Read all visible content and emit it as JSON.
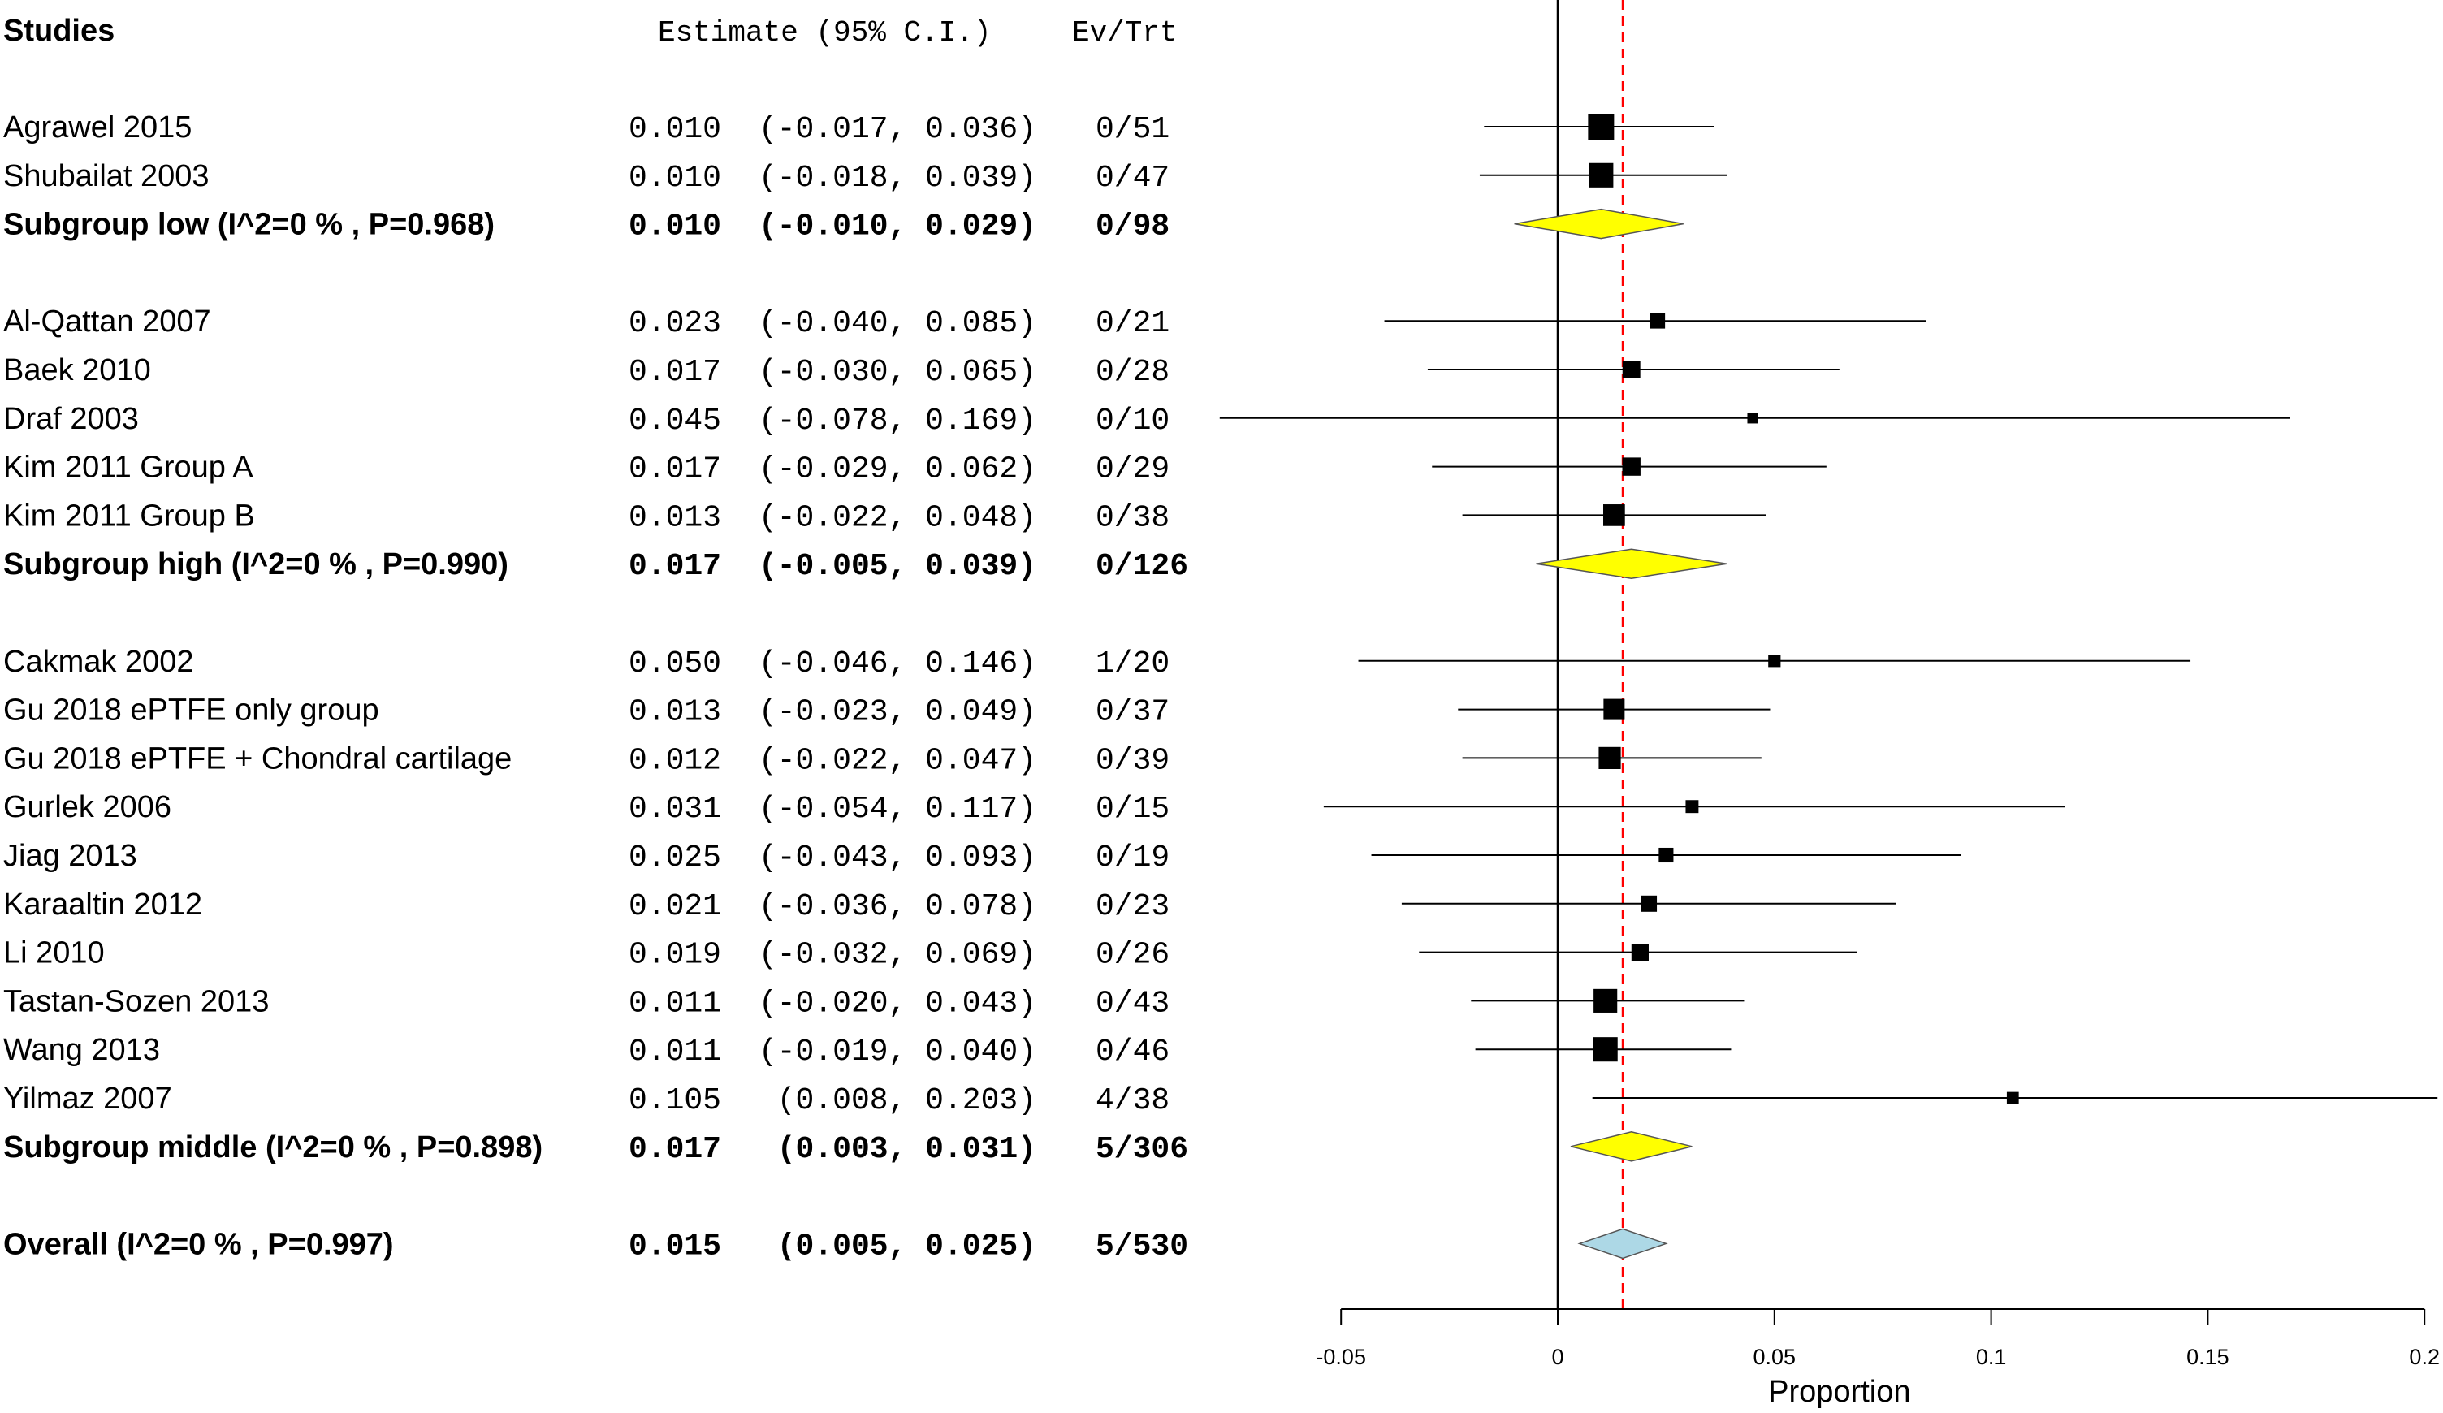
{
  "chart_data": {
    "type": "forest",
    "headers": {
      "studies": "Studies",
      "estimate": "Estimate (95% C.I.)",
      "evtrt": "Ev/Trt"
    },
    "xlabel": "Proportion",
    "xlim": [
      -0.05,
      0.2
    ],
    "ticks": [
      {
        "value": -0.05,
        "label": "-0.05"
      },
      {
        "value": 0,
        "label": "0"
      },
      {
        "value": 0.05,
        "label": "0.05"
      },
      {
        "value": 0.1,
        "label": "0.1"
      },
      {
        "value": 0.15,
        "label": "0.15"
      },
      {
        "value": 0.2,
        "label": "0.2"
      }
    ],
    "reference_line": 0,
    "overall_line": 0.015,
    "colors": {
      "subgroup_diamond": "#ffff00",
      "overall_diamond": "#add8e6",
      "overall_line": "#ff0000"
    },
    "rows": [
      {
        "row": 2,
        "type": "study",
        "label": "Agrawel 2015",
        "est": 0.01,
        "lo": -0.017,
        "hi": 0.036,
        "ci_text": "(-0.017, 0.036)",
        "events": "0/51",
        "weight": 1.0
      },
      {
        "row": 3,
        "type": "study",
        "label": "Shubailat 2003",
        "est": 0.01,
        "lo": -0.018,
        "hi": 0.039,
        "ci_text": "(-0.018, 0.039)",
        "events": "0/47",
        "weight": 0.92
      },
      {
        "row": 4,
        "type": "subgroup",
        "label": "Subgroup low (I^2=0 % , P=0.968)",
        "est": 0.01,
        "lo": -0.01,
        "hi": 0.029,
        "ci_text": "(-0.010, 0.029)",
        "events": "0/98"
      },
      {
        "row": 6,
        "type": "study",
        "label": "Al-Qattan 2007",
        "est": 0.023,
        "lo": -0.04,
        "hi": 0.085,
        "ci_text": "(-0.040, 0.085)",
        "events": "0/21",
        "weight": 0.45
      },
      {
        "row": 7,
        "type": "study",
        "label": "Baek 2010",
        "est": 0.017,
        "lo": -0.03,
        "hi": 0.065,
        "ci_text": "(-0.030, 0.065)",
        "events": "0/28",
        "weight": 0.58
      },
      {
        "row": 8,
        "type": "study",
        "label": "Draf 2003",
        "est": 0.045,
        "lo": -0.078,
        "hi": 0.169,
        "ci_text": "(-0.078, 0.169)",
        "events": "0/10",
        "weight": 0.22
      },
      {
        "row": 9,
        "type": "study",
        "label": "Kim 2011 Group A",
        "est": 0.017,
        "lo": -0.029,
        "hi": 0.062,
        "ci_text": "(-0.029, 0.062)",
        "events": "0/29",
        "weight": 0.6
      },
      {
        "row": 10,
        "type": "study",
        "label": "Kim 2011 Group B",
        "est": 0.013,
        "lo": -0.022,
        "hi": 0.048,
        "ci_text": "(-0.022, 0.048)",
        "events": "0/38",
        "weight": 0.78
      },
      {
        "row": 11,
        "type": "subgroup",
        "label": "Subgroup high (I^2=0 % , P=0.990)",
        "est": 0.017,
        "lo": -0.005,
        "hi": 0.039,
        "ci_text": "(-0.005, 0.039)",
        "events": "0/126"
      },
      {
        "row": 13,
        "type": "study",
        "label": "Cakmak 2002",
        "est": 0.05,
        "lo": -0.046,
        "hi": 0.146,
        "ci_text": "(-0.046, 0.146)",
        "events": "1/20",
        "weight": 0.3
      },
      {
        "row": 14,
        "type": "study",
        "label": "Gu 2018 ePTFE only group",
        "est": 0.013,
        "lo": -0.023,
        "hi": 0.049,
        "ci_text": "(-0.023, 0.049)",
        "events": "0/37",
        "weight": 0.75
      },
      {
        "row": 15,
        "type": "study",
        "label": "Gu 2018 ePTFE + Chondral cartilage",
        "est": 0.012,
        "lo": -0.022,
        "hi": 0.047,
        "ci_text": "(-0.022, 0.047)",
        "events": "0/39",
        "weight": 0.8
      },
      {
        "row": 16,
        "type": "study",
        "label": "Gurlek 2006",
        "est": 0.031,
        "lo": -0.054,
        "hi": 0.117,
        "ci_text": "(-0.054, 0.117)",
        "events": "0/15",
        "weight": 0.33
      },
      {
        "row": 17,
        "type": "study",
        "label": "Jiag 2013",
        "est": 0.025,
        "lo": -0.043,
        "hi": 0.093,
        "ci_text": "(-0.043, 0.093)",
        "events": "0/19",
        "weight": 0.42
      },
      {
        "row": 18,
        "type": "study",
        "label": "Karaaltin 2012",
        "est": 0.021,
        "lo": -0.036,
        "hi": 0.078,
        "ci_text": "(-0.036, 0.078)",
        "events": "0/23",
        "weight": 0.5
      },
      {
        "row": 19,
        "type": "study",
        "label": "Li 2010",
        "est": 0.019,
        "lo": -0.032,
        "hi": 0.069,
        "ci_text": "(-0.032, 0.069)",
        "events": "0/26",
        "weight": 0.55
      },
      {
        "row": 20,
        "type": "study",
        "label": "Tastan-Sozen 2013",
        "est": 0.011,
        "lo": -0.02,
        "hi": 0.043,
        "ci_text": "(-0.020, 0.043)",
        "events": "0/43",
        "weight": 0.88
      },
      {
        "row": 21,
        "type": "study",
        "label": "Wang 2013",
        "est": 0.011,
        "lo": -0.019,
        "hi": 0.04,
        "ci_text": "(-0.019, 0.040)",
        "events": "0/46",
        "weight": 0.92
      },
      {
        "row": 22,
        "type": "study",
        "label": "Yilmaz 2007",
        "est": 0.105,
        "lo": 0.008,
        "hi": 0.203,
        "ci_text": "(0.008, 0.203)",
        "events": "4/38",
        "weight": 0.28
      },
      {
        "row": 23,
        "type": "subgroup",
        "label": "Subgroup middle (I^2=0 % , P=0.898)",
        "est": 0.017,
        "lo": 0.003,
        "hi": 0.031,
        "ci_text": "(0.003, 0.031)",
        "events": "5/306"
      },
      {
        "row": 25,
        "type": "overall",
        "label": "Overall (I^2=0 % , P=0.997)",
        "est": 0.015,
        "lo": 0.005,
        "hi": 0.025,
        "ci_text": "(0.005, 0.025)",
        "events": "5/530"
      }
    ]
  }
}
